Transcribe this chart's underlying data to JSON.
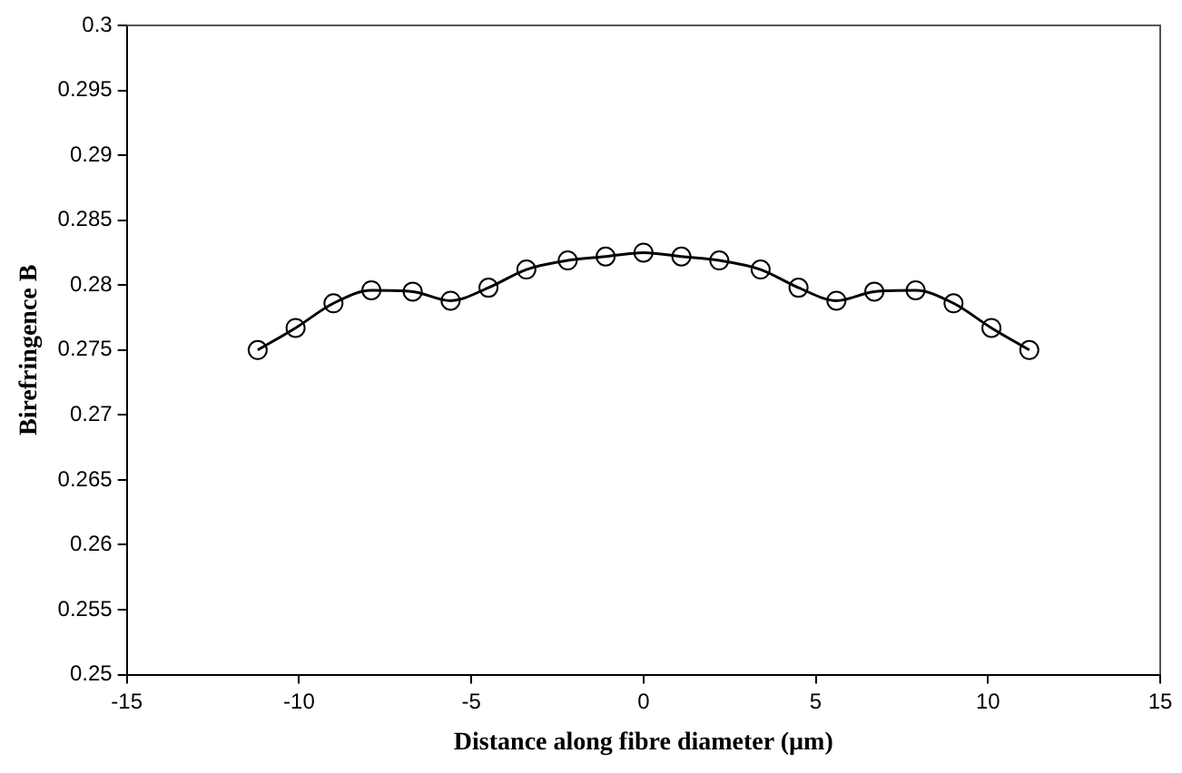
{
  "chart_data": {
    "type": "line",
    "xlabel": "Distance along fibre diameter (µm)",
    "ylabel": "Birefringence B",
    "x": [
      -11.2,
      -10.1,
      -9,
      -7.9,
      -6.7,
      -5.6,
      -4.5,
      -3.4,
      -2.2,
      -1.1,
      0,
      1.1,
      2.2,
      3.4,
      4.5,
      5.6,
      6.7,
      7.9,
      9,
      10.1,
      11.2
    ],
    "series": [
      {
        "color": "#000000",
        "values": [
          0.275,
          0.2767,
          0.2786,
          0.2796,
          0.2795,
          0.2788,
          0.2798,
          0.2812,
          0.2819,
          0.2822,
          0.2825,
          0.2822,
          0.2819,
          0.2812,
          0.2798,
          0.2788,
          0.2795,
          0.2796,
          0.2786,
          0.2767,
          0.275
        ]
      }
    ],
    "xlim": [
      -15,
      15
    ],
    "xticks": [
      -15,
      -10,
      -5,
      0,
      5,
      10,
      15
    ],
    "ylim": [
      0.25,
      0.3
    ],
    "yticks": [
      0.25,
      0.255,
      0.26,
      0.265,
      0.27,
      0.275,
      0.28,
      0.285,
      0.29,
      0.295,
      0.3
    ],
    "grid": false,
    "legend": false,
    "marker": "circle",
    "line_style": "solid"
  }
}
